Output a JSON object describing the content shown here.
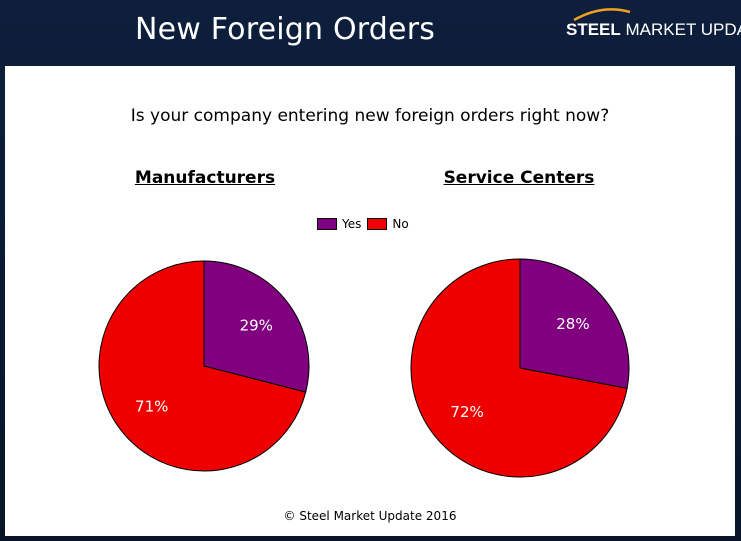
{
  "header": {
    "title": "New Foreign Orders",
    "logo_bold": "STEEL",
    "logo_rest": " MARKET UPDATE"
  },
  "question": "Is your company entering new foreign orders right now?",
  "footer": "© Steel Market Update 2016",
  "colors": {
    "yes": "#800080",
    "no": "#ee0000"
  },
  "chart_data": [
    {
      "type": "pie",
      "title": "Manufacturers",
      "categories": [
        "Yes",
        "No"
      ],
      "values": [
        29,
        71
      ],
      "labels": [
        "29%",
        "71%"
      ],
      "legend": "top-center"
    },
    {
      "type": "pie",
      "title": "Service Centers",
      "categories": [
        "Yes",
        "No"
      ],
      "values": [
        28,
        72
      ],
      "labels": [
        "28%",
        "72%"
      ],
      "legend": "top-center"
    }
  ]
}
